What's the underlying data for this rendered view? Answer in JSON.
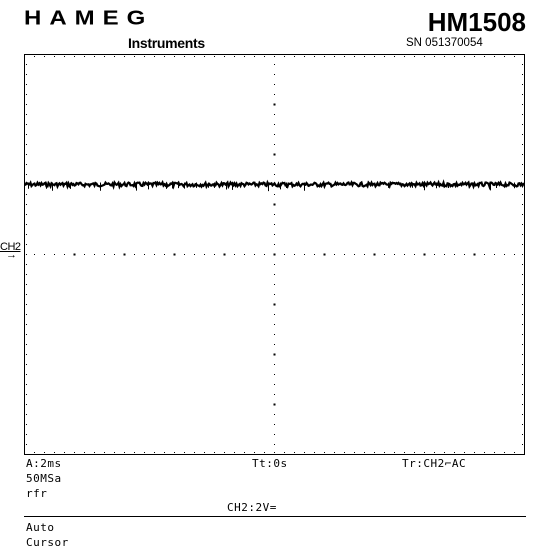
{
  "header": {
    "brand": "HAMEG",
    "brand_sub": "Instruments",
    "model": "HM1508",
    "serial": "SN 051370054"
  },
  "channel_marker": {
    "label": "CH2",
    "arrow": "→"
  },
  "readouts": {
    "timebase": "A:2ms",
    "trigger_time": "Tt:0s",
    "trigger_source": "Tr:CH2⌐AC",
    "sample_rate": "50MSa",
    "mode": "rfr",
    "channel_scale": "CH2:2V=",
    "trigger_mode": "Auto",
    "cursor": "Cursor"
  },
  "colors": {
    "trace": "#000000",
    "grid": "#000000",
    "background": "#ffffff"
  },
  "chart_data": {
    "type": "line",
    "divisions": {
      "x": 10,
      "y": 8
    },
    "time_per_div": "2ms",
    "volts_per_div": "2V",
    "xlim": [
      0,
      10
    ],
    "ylim": [
      -4,
      4
    ],
    "series": [
      {
        "values_divisions": [
          1.4,
          1.4,
          1.4,
          1.4,
          1.4,
          1.4,
          1.4,
          1.4,
          1.4,
          1.4,
          1.4
        ]
      }
    ],
    "grid": "dotted"
  }
}
